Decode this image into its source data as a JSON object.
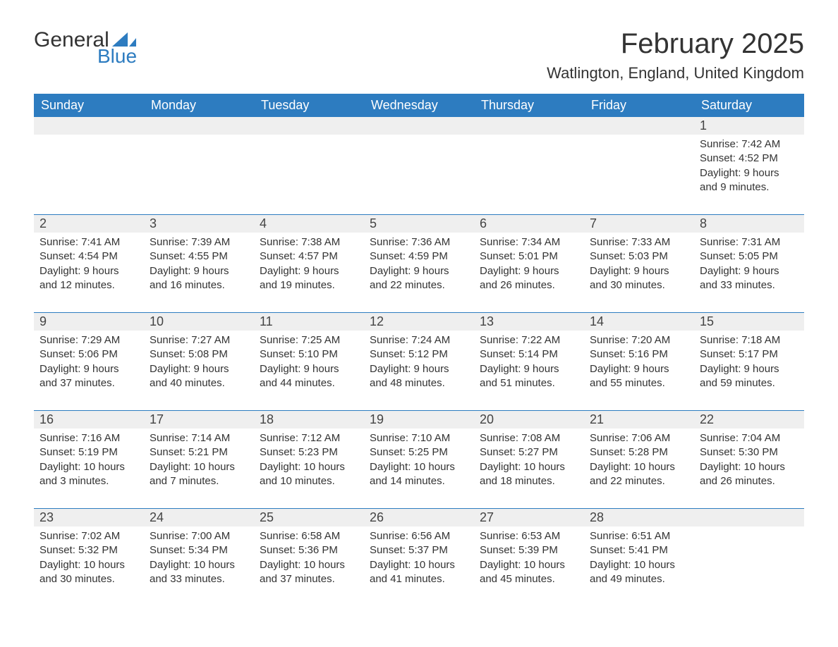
{
  "brand": {
    "general": "General",
    "blue": "Blue",
    "sail_color": "#2d7cc0"
  },
  "title": "February 2025",
  "location": "Watlington, England, United Kingdom",
  "colors": {
    "header_bg": "#2d7cc0",
    "header_text": "#ffffff",
    "daynum_bg": "#efefef",
    "text": "#333333",
    "rule": "#2d7cc0",
    "page_bg": "#ffffff"
  },
  "day_headers": [
    "Sunday",
    "Monday",
    "Tuesday",
    "Wednesday",
    "Thursday",
    "Friday",
    "Saturday"
  ],
  "weeks": [
    [
      null,
      null,
      null,
      null,
      null,
      null,
      {
        "n": "1",
        "sunrise": "Sunrise: 7:42 AM",
        "sunset": "Sunset: 4:52 PM",
        "day1": "Daylight: 9 hours",
        "day2": "and 9 minutes."
      }
    ],
    [
      {
        "n": "2",
        "sunrise": "Sunrise: 7:41 AM",
        "sunset": "Sunset: 4:54 PM",
        "day1": "Daylight: 9 hours",
        "day2": "and 12 minutes."
      },
      {
        "n": "3",
        "sunrise": "Sunrise: 7:39 AM",
        "sunset": "Sunset: 4:55 PM",
        "day1": "Daylight: 9 hours",
        "day2": "and 16 minutes."
      },
      {
        "n": "4",
        "sunrise": "Sunrise: 7:38 AM",
        "sunset": "Sunset: 4:57 PM",
        "day1": "Daylight: 9 hours",
        "day2": "and 19 minutes."
      },
      {
        "n": "5",
        "sunrise": "Sunrise: 7:36 AM",
        "sunset": "Sunset: 4:59 PM",
        "day1": "Daylight: 9 hours",
        "day2": "and 22 minutes."
      },
      {
        "n": "6",
        "sunrise": "Sunrise: 7:34 AM",
        "sunset": "Sunset: 5:01 PM",
        "day1": "Daylight: 9 hours",
        "day2": "and 26 minutes."
      },
      {
        "n": "7",
        "sunrise": "Sunrise: 7:33 AM",
        "sunset": "Sunset: 5:03 PM",
        "day1": "Daylight: 9 hours",
        "day2": "and 30 minutes."
      },
      {
        "n": "8",
        "sunrise": "Sunrise: 7:31 AM",
        "sunset": "Sunset: 5:05 PM",
        "day1": "Daylight: 9 hours",
        "day2": "and 33 minutes."
      }
    ],
    [
      {
        "n": "9",
        "sunrise": "Sunrise: 7:29 AM",
        "sunset": "Sunset: 5:06 PM",
        "day1": "Daylight: 9 hours",
        "day2": "and 37 minutes."
      },
      {
        "n": "10",
        "sunrise": "Sunrise: 7:27 AM",
        "sunset": "Sunset: 5:08 PM",
        "day1": "Daylight: 9 hours",
        "day2": "and 40 minutes."
      },
      {
        "n": "11",
        "sunrise": "Sunrise: 7:25 AM",
        "sunset": "Sunset: 5:10 PM",
        "day1": "Daylight: 9 hours",
        "day2": "and 44 minutes."
      },
      {
        "n": "12",
        "sunrise": "Sunrise: 7:24 AM",
        "sunset": "Sunset: 5:12 PM",
        "day1": "Daylight: 9 hours",
        "day2": "and 48 minutes."
      },
      {
        "n": "13",
        "sunrise": "Sunrise: 7:22 AM",
        "sunset": "Sunset: 5:14 PM",
        "day1": "Daylight: 9 hours",
        "day2": "and 51 minutes."
      },
      {
        "n": "14",
        "sunrise": "Sunrise: 7:20 AM",
        "sunset": "Sunset: 5:16 PM",
        "day1": "Daylight: 9 hours",
        "day2": "and 55 minutes."
      },
      {
        "n": "15",
        "sunrise": "Sunrise: 7:18 AM",
        "sunset": "Sunset: 5:17 PM",
        "day1": "Daylight: 9 hours",
        "day2": "and 59 minutes."
      }
    ],
    [
      {
        "n": "16",
        "sunrise": "Sunrise: 7:16 AM",
        "sunset": "Sunset: 5:19 PM",
        "day1": "Daylight: 10 hours",
        "day2": "and 3 minutes."
      },
      {
        "n": "17",
        "sunrise": "Sunrise: 7:14 AM",
        "sunset": "Sunset: 5:21 PM",
        "day1": "Daylight: 10 hours",
        "day2": "and 7 minutes."
      },
      {
        "n": "18",
        "sunrise": "Sunrise: 7:12 AM",
        "sunset": "Sunset: 5:23 PM",
        "day1": "Daylight: 10 hours",
        "day2": "and 10 minutes."
      },
      {
        "n": "19",
        "sunrise": "Sunrise: 7:10 AM",
        "sunset": "Sunset: 5:25 PM",
        "day1": "Daylight: 10 hours",
        "day2": "and 14 minutes."
      },
      {
        "n": "20",
        "sunrise": "Sunrise: 7:08 AM",
        "sunset": "Sunset: 5:27 PM",
        "day1": "Daylight: 10 hours",
        "day2": "and 18 minutes."
      },
      {
        "n": "21",
        "sunrise": "Sunrise: 7:06 AM",
        "sunset": "Sunset: 5:28 PM",
        "day1": "Daylight: 10 hours",
        "day2": "and 22 minutes."
      },
      {
        "n": "22",
        "sunrise": "Sunrise: 7:04 AM",
        "sunset": "Sunset: 5:30 PM",
        "day1": "Daylight: 10 hours",
        "day2": "and 26 minutes."
      }
    ],
    [
      {
        "n": "23",
        "sunrise": "Sunrise: 7:02 AM",
        "sunset": "Sunset: 5:32 PM",
        "day1": "Daylight: 10 hours",
        "day2": "and 30 minutes."
      },
      {
        "n": "24",
        "sunrise": "Sunrise: 7:00 AM",
        "sunset": "Sunset: 5:34 PM",
        "day1": "Daylight: 10 hours",
        "day2": "and 33 minutes."
      },
      {
        "n": "25",
        "sunrise": "Sunrise: 6:58 AM",
        "sunset": "Sunset: 5:36 PM",
        "day1": "Daylight: 10 hours",
        "day2": "and 37 minutes."
      },
      {
        "n": "26",
        "sunrise": "Sunrise: 6:56 AM",
        "sunset": "Sunset: 5:37 PM",
        "day1": "Daylight: 10 hours",
        "day2": "and 41 minutes."
      },
      {
        "n": "27",
        "sunrise": "Sunrise: 6:53 AM",
        "sunset": "Sunset: 5:39 PM",
        "day1": "Daylight: 10 hours",
        "day2": "and 45 minutes."
      },
      {
        "n": "28",
        "sunrise": "Sunrise: 6:51 AM",
        "sunset": "Sunset: 5:41 PM",
        "day1": "Daylight: 10 hours",
        "day2": "and 49 minutes."
      },
      null
    ]
  ]
}
